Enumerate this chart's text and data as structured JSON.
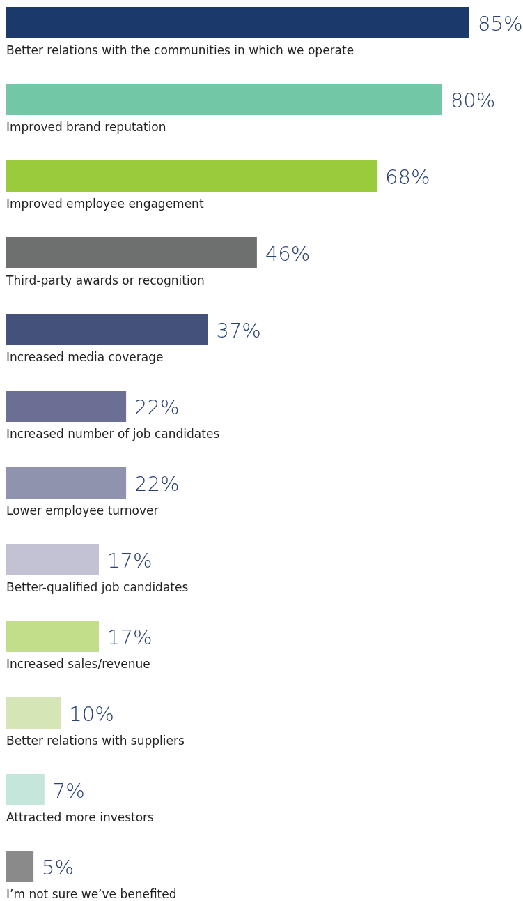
{
  "chart_data": {
    "type": "bar",
    "orientation": "horizontal",
    "value_labels": [
      "85%",
      "80%",
      "68%",
      "46%",
      "37%",
      "22%",
      "22%",
      "17%",
      "17%",
      "10%",
      "7%",
      "5%"
    ],
    "categories": [
      "Better relations with the communities in which we operate",
      "Improved brand reputation",
      "Improved employee engagement",
      "Third-party awards or recognition",
      "Increased media coverage",
      "Increased number of job candidates",
      "Lower employee turnover",
      "Better-qualified job candidates",
      "Increased sales/revenue",
      "Better relations with suppliers",
      "Attracted more investors",
      "I’m not sure we’ve benefited"
    ],
    "values": [
      85,
      80,
      68,
      46,
      37,
      22,
      22,
      17,
      17,
      10,
      7,
      5
    ],
    "colors": [
      "#1b3a6b",
      "#72c7a6",
      "#9acb3c",
      "#6e6f6f",
      "#44527b",
      "#6a6f93",
      "#9093ae",
      "#c3c2d4",
      "#c3de8b",
      "#d5e5b5",
      "#c5e6da",
      "#8a8a8a"
    ]
  }
}
